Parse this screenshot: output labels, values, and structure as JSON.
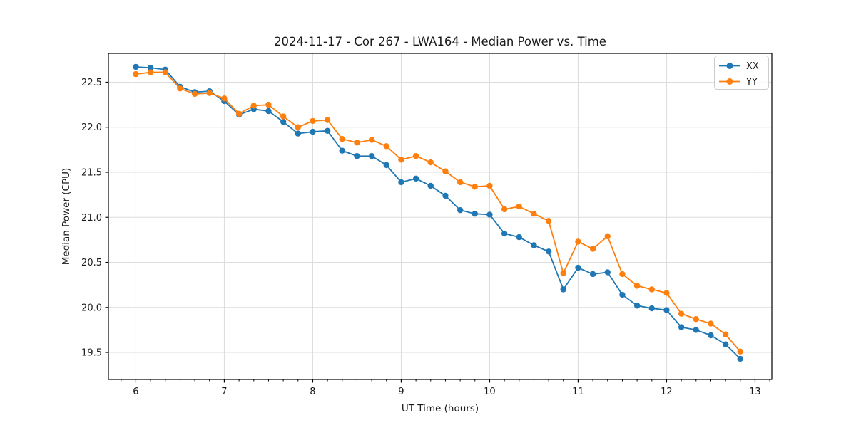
{
  "chart_data": {
    "type": "line",
    "title": "2024-11-17 - Cor 267 - LWA164 - Median Power vs. Time",
    "xlabel": "UT Time (hours)",
    "ylabel": "Median Power (CPU)",
    "x": [
      6.0,
      6.167,
      6.333,
      6.5,
      6.667,
      6.833,
      7.0,
      7.167,
      7.333,
      7.5,
      7.667,
      7.833,
      8.0,
      8.167,
      8.333,
      8.5,
      8.667,
      8.833,
      9.0,
      9.167,
      9.333,
      9.5,
      9.667,
      9.833,
      10.0,
      10.167,
      10.333,
      10.5,
      10.667,
      10.833,
      11.0,
      11.167,
      11.333,
      11.5,
      11.667,
      11.833,
      12.0,
      12.167,
      12.333,
      12.5,
      12.667,
      12.833
    ],
    "series": [
      {
        "name": "XX",
        "color": "#1f77b4",
        "values": [
          22.67,
          22.66,
          22.64,
          22.45,
          22.39,
          22.4,
          22.29,
          22.14,
          22.2,
          22.18,
          22.06,
          21.93,
          21.95,
          21.96,
          21.74,
          21.68,
          21.68,
          21.58,
          21.39,
          21.43,
          21.35,
          21.24,
          21.08,
          21.04,
          21.03,
          20.82,
          20.78,
          20.69,
          20.62,
          20.2,
          20.44,
          20.37,
          20.39,
          20.14,
          20.02,
          19.99,
          19.97,
          19.78,
          19.75,
          19.69,
          19.59,
          19.43
        ]
      },
      {
        "name": "YY",
        "color": "#ff7f0e",
        "values": [
          22.59,
          22.61,
          22.61,
          22.43,
          22.37,
          22.38,
          22.32,
          22.15,
          22.24,
          22.25,
          22.12,
          22.0,
          22.07,
          22.08,
          21.87,
          21.83,
          21.86,
          21.79,
          21.64,
          21.68,
          21.61,
          21.51,
          21.39,
          21.34,
          21.35,
          21.09,
          21.12,
          21.04,
          20.96,
          20.38,
          20.73,
          20.65,
          20.79,
          20.37,
          20.24,
          20.2,
          20.16,
          19.93,
          19.87,
          19.82,
          19.7,
          19.51
        ]
      }
    ],
    "x_ticks": [
      6,
      7,
      8,
      9,
      10,
      11,
      12,
      13
    ],
    "y_ticks": [
      19.5,
      20.0,
      20.5,
      21.0,
      21.5,
      22.0,
      22.5
    ],
    "x_minor_step": 0.16667,
    "xlim": [
      5.69,
      13.19
    ],
    "ylim": [
      19.2,
      22.82
    ],
    "grid": true,
    "legend_position": "upper right",
    "marker": "circle",
    "grid_color": "#dcdcdc",
    "spine_color": "#000000"
  }
}
